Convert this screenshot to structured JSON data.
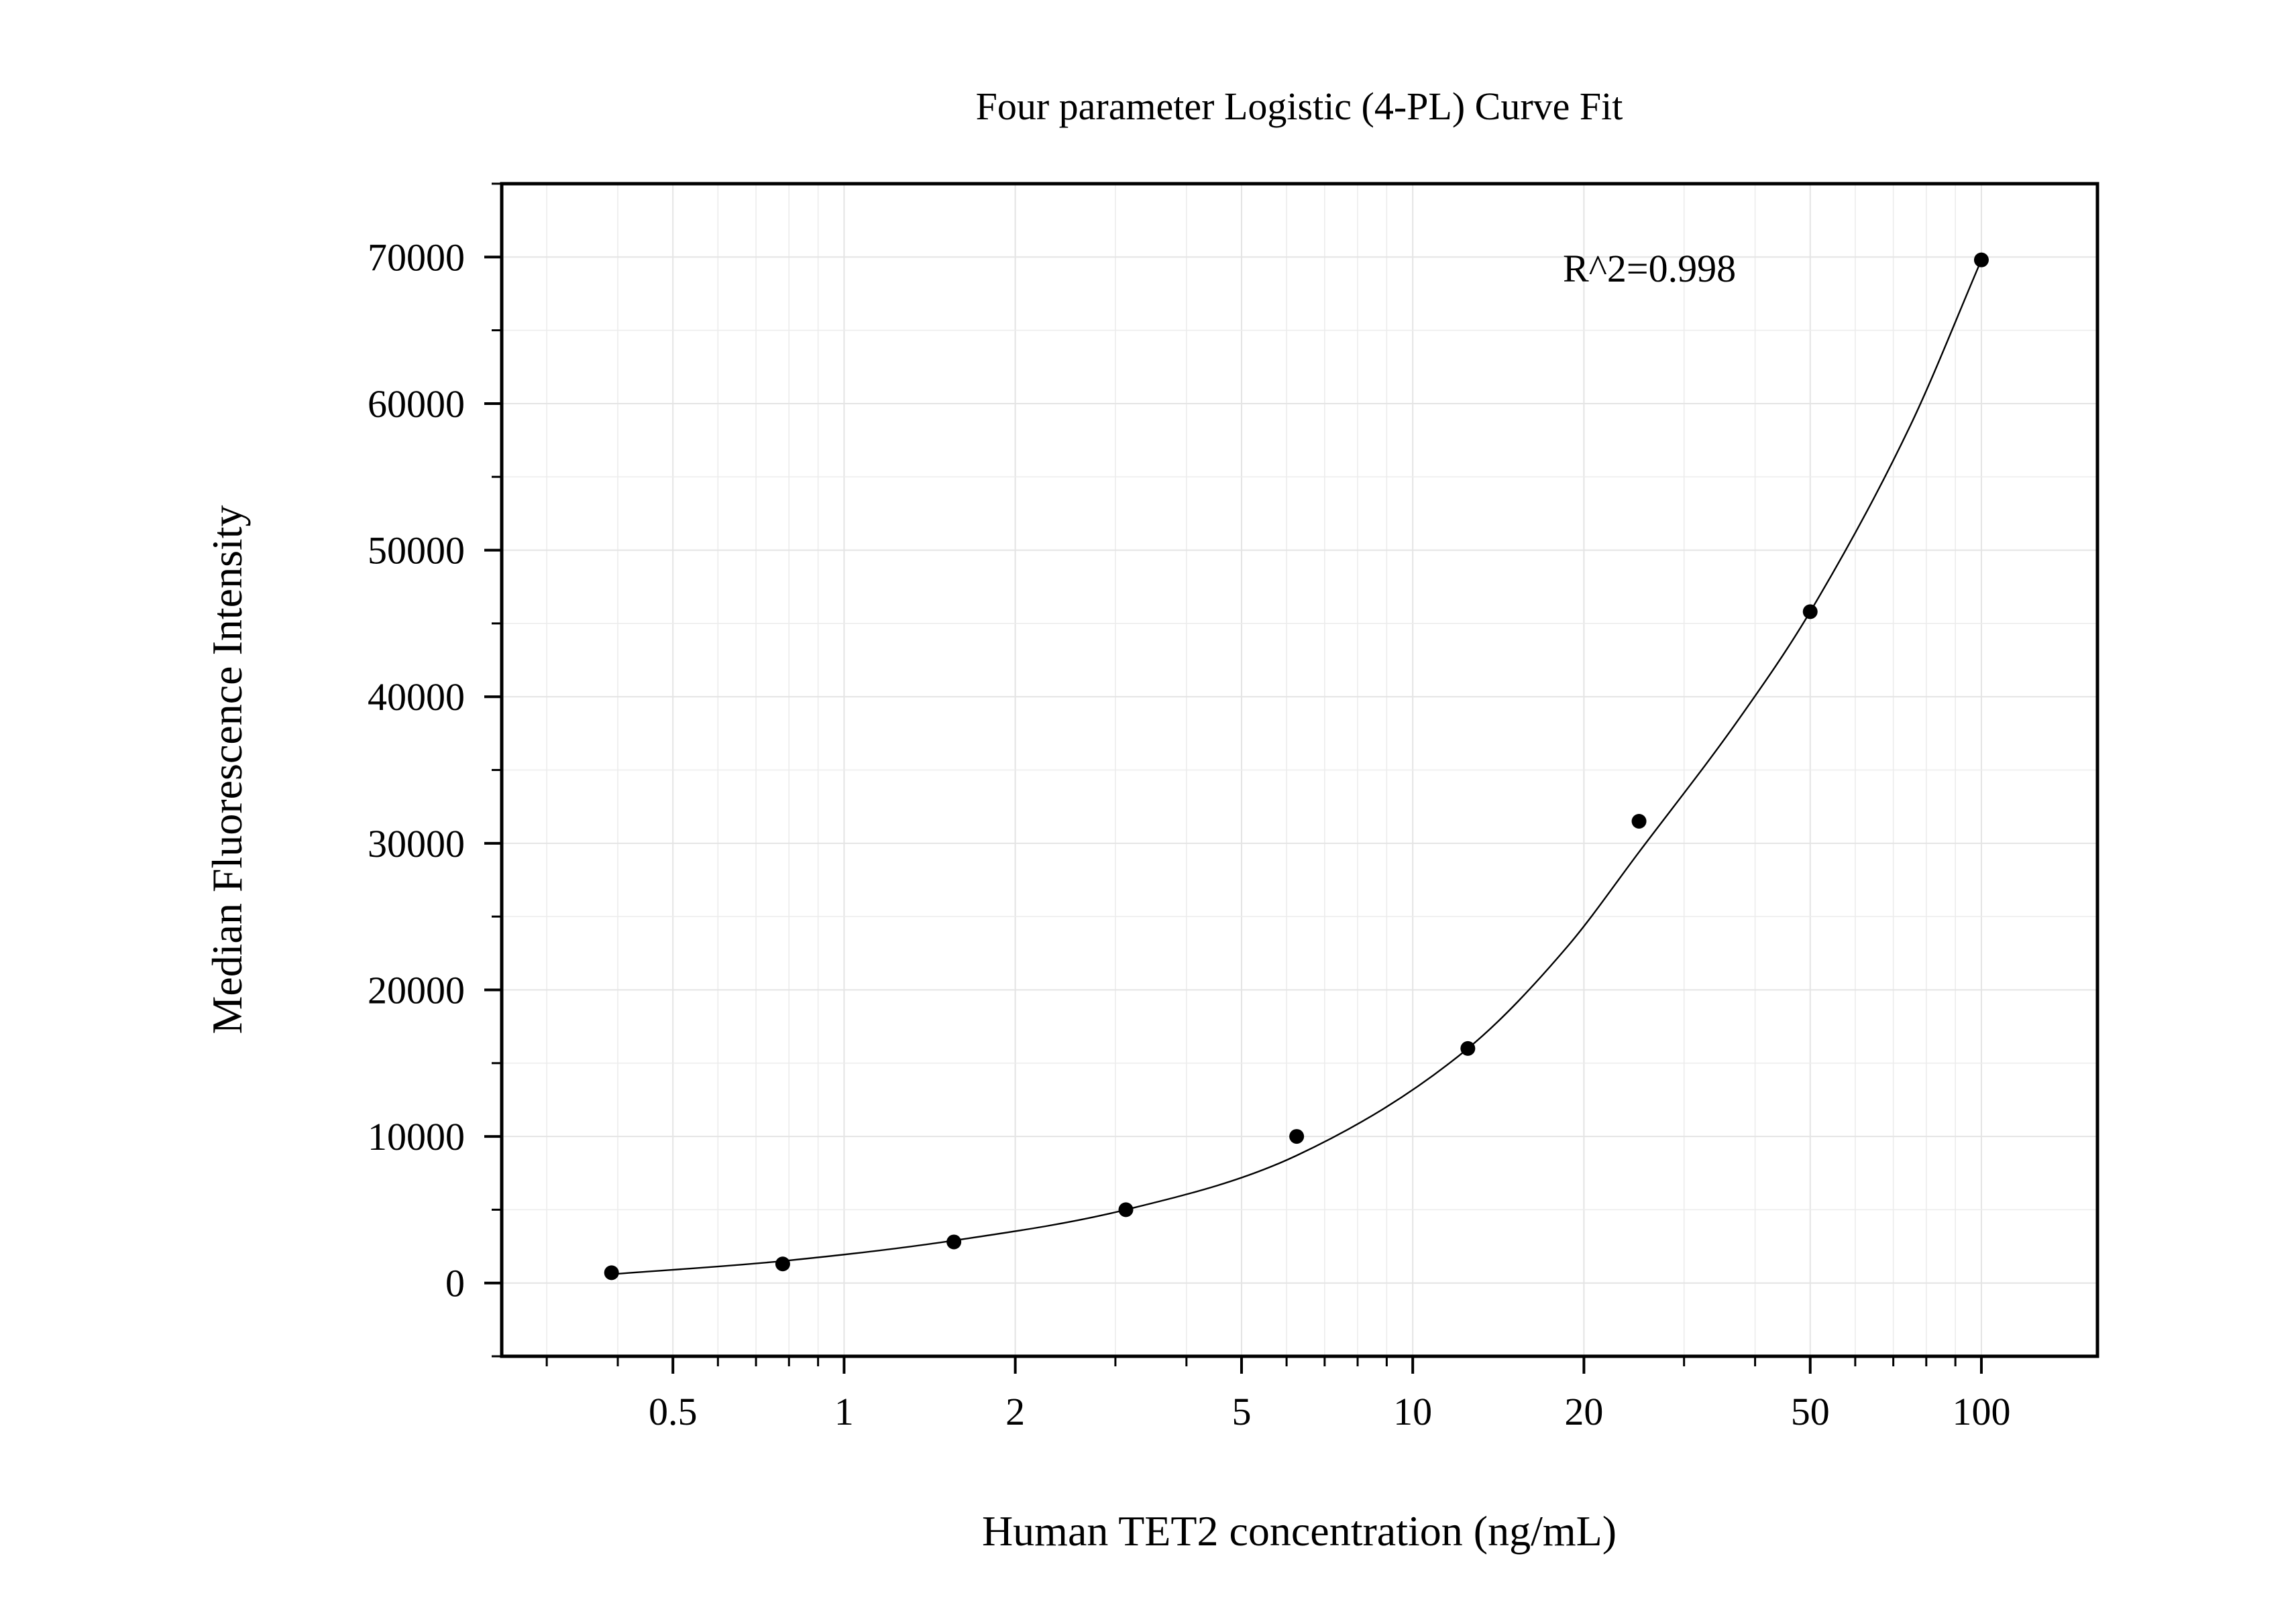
{
  "chart_data": {
    "type": "scatter",
    "title": "Four parameter Logistic (4-PL) Curve Fit",
    "xlabel": "Human TET2 concentration (ng/mL)",
    "ylabel": "Median Fluorescence Intensity",
    "annotation": "R^2=0.998",
    "x_scale": "log",
    "xlim": [
      0.25,
      160
    ],
    "ylim": [
      -5000,
      75000
    ],
    "x_ticks": [
      0.5,
      1,
      2,
      5,
      10,
      20,
      50,
      100
    ],
    "x_tick_labels": [
      "0.5",
      "1",
      "2",
      "5",
      "10",
      "20",
      "50",
      "100"
    ],
    "y_ticks": [
      0,
      10000,
      20000,
      30000,
      40000,
      50000,
      60000,
      70000
    ],
    "y_tick_labels": [
      "0",
      "10000",
      "20000",
      "30000",
      "40000",
      "50000",
      "60000",
      "70000"
    ],
    "grid": true,
    "series": [
      {
        "type": "scatter",
        "color": "#000000",
        "x": [
          0.39,
          0.78,
          1.56,
          3.13,
          6.25,
          12.5,
          25,
          50,
          100
        ],
        "y": [
          700,
          1300,
          2800,
          5000,
          10000,
          16000,
          31500,
          45800,
          69800
        ]
      },
      {
        "type": "line",
        "color": "#000000",
        "x": [
          0.39,
          0.78,
          1.56,
          3.13,
          6.25,
          12.5,
          18.75,
          25,
          37.5,
          50,
          75,
          100
        ],
        "y": [
          600,
          1500,
          2900,
          5000,
          8700,
          16000,
          23000,
          29400,
          38500,
          45800,
          58500,
          69800
        ]
      }
    ]
  }
}
